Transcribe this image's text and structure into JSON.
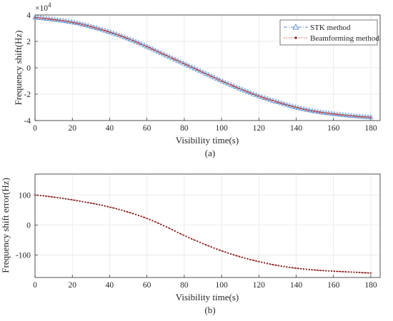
{
  "chart_data": [
    {
      "type": "line",
      "panel_label": "(a)",
      "xlabel": "Visibility time(s)",
      "ylabel": "Frequency shift(Hz)",
      "y_multiplier": "×10",
      "y_exponent": "4",
      "xlim": [
        0,
        185
      ],
      "ylim": [
        -4,
        4
      ],
      "xticks": [
        0,
        20,
        40,
        60,
        80,
        100,
        120,
        140,
        160,
        180
      ],
      "yticks": [
        -4,
        -2,
        0,
        2,
        4
      ],
      "grid": true,
      "legend_position": "top-right",
      "series": [
        {
          "name": "STK method",
          "color": "#5b8bd0",
          "marker": "triangle",
          "line_style": "dash-dot",
          "x": [
            0,
            10,
            20,
            30,
            40,
            50,
            60,
            70,
            80,
            90,
            100,
            110,
            120,
            130,
            140,
            150,
            160,
            170,
            180
          ],
          "y": [
            3.8,
            3.65,
            3.45,
            3.12,
            2.7,
            2.2,
            1.6,
            0.95,
            0.3,
            -0.35,
            -1.0,
            -1.6,
            -2.15,
            -2.6,
            -3.0,
            -3.3,
            -3.5,
            -3.65,
            -3.75
          ]
        },
        {
          "name": "Beamforming method",
          "color": "#c0392b",
          "marker": "dot",
          "line_style": "dotted",
          "x": [
            0,
            10,
            20,
            30,
            40,
            50,
            60,
            70,
            80,
            90,
            100,
            110,
            120,
            130,
            140,
            150,
            160,
            170,
            180
          ],
          "y": [
            3.8,
            3.65,
            3.45,
            3.12,
            2.7,
            2.2,
            1.6,
            0.95,
            0.3,
            -0.35,
            -1.0,
            -1.6,
            -2.15,
            -2.6,
            -3.0,
            -3.3,
            -3.5,
            -3.65,
            -3.75
          ]
        }
      ]
    },
    {
      "type": "line",
      "panel_label": "(b)",
      "xlabel": "Visibility time(s)",
      "ylabel": "Frequency shift error(Hz)",
      "xlim": [
        0,
        185
      ],
      "ylim": [
        -175,
        170
      ],
      "xticks": [
        0,
        20,
        40,
        60,
        80,
        100,
        120,
        140,
        160,
        180
      ],
      "yticks": [
        -100,
        0,
        100
      ],
      "grid": true,
      "series": [
        {
          "color": "#8b1a1a",
          "marker": "dot",
          "line_style": "dotted",
          "x": [
            0,
            10,
            20,
            30,
            40,
            50,
            60,
            70,
            80,
            90,
            100,
            110,
            120,
            130,
            140,
            150,
            160,
            170,
            180
          ],
          "y": [
            100,
            93,
            84,
            73,
            60,
            43,
            22,
            -5,
            -35,
            -62,
            -86,
            -106,
            -122,
            -135,
            -144,
            -150,
            -154,
            -157,
            -160
          ]
        }
      ]
    }
  ]
}
